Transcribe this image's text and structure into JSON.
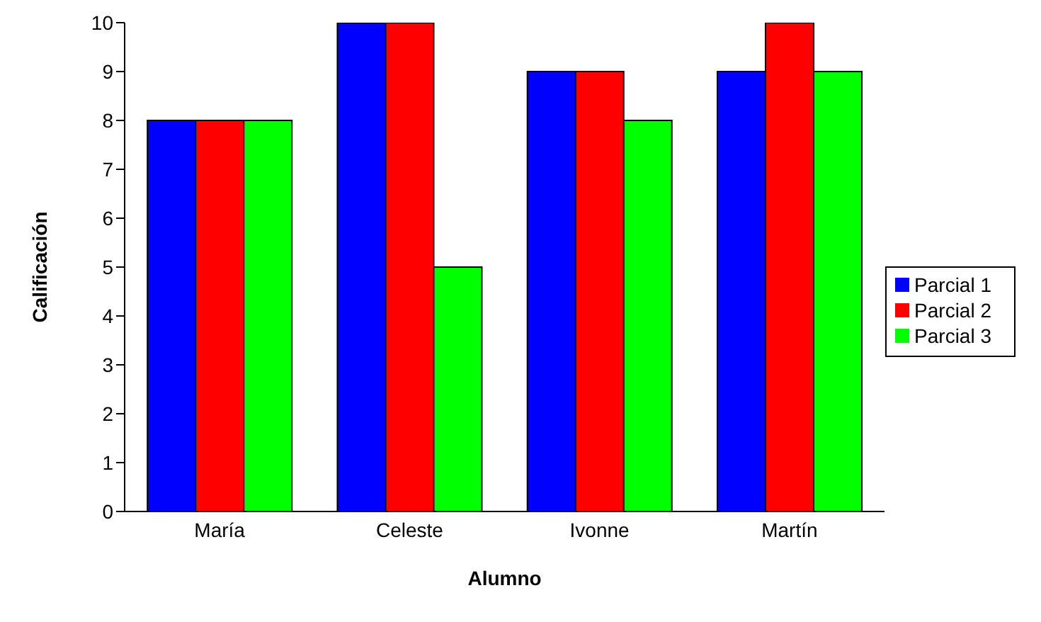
{
  "chart_data": {
    "type": "bar",
    "xlabel": "Alumno",
    "ylabel": "Calificación",
    "categories": [
      "María",
      "Celeste",
      "Ivonne",
      "Martín"
    ],
    "series": [
      {
        "name": "Parcial 1",
        "color": "#0000ff",
        "values": [
          8,
          10,
          9,
          9
        ]
      },
      {
        "name": "Parcial 2",
        "color": "#ff0000",
        "values": [
          8,
          10,
          9,
          10
        ]
      },
      {
        "name": "Parcial 3",
        "color": "#00ff00",
        "values": [
          8,
          5,
          8,
          9
        ]
      }
    ],
    "ylim": [
      0,
      10
    ],
    "yticks": [
      0,
      1,
      2,
      3,
      4,
      5,
      6,
      7,
      8,
      9,
      10
    ],
    "grid": false,
    "legend": "right"
  }
}
